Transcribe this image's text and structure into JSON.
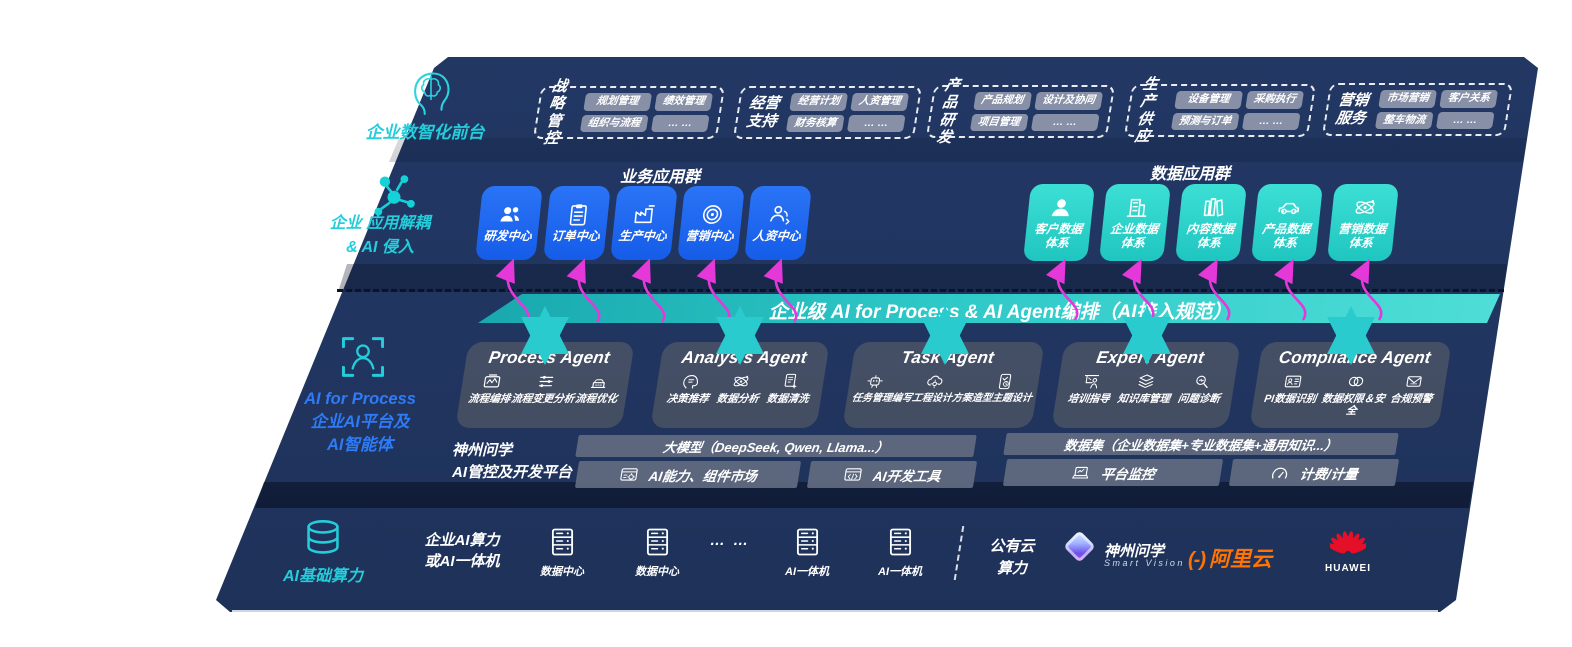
{
  "colors": {
    "accent_teal": "#25ccda",
    "accent_blue": "#2e7bf6",
    "tile_blue": "#1b63f0",
    "tile_teal": "#2bd6cc",
    "bar_teal": "#2fc9c8",
    "arrow_magenta": "#e438d8",
    "alibaba_orange": "#ff7300",
    "huawei_red": "#e60f28",
    "slab_navy": "#213762"
  },
  "front_office": {
    "label": "企业数智化前台",
    "groups": [
      {
        "name": "战略管控",
        "items": [
          "规划管理",
          "绩效管理",
          "组织与流程",
          "… …"
        ]
      },
      {
        "name": "经营支持",
        "items": [
          "经营计划",
          "人资管理",
          "财务核算",
          "… …"
        ]
      },
      {
        "name": "产品研发",
        "items": [
          "产品规划",
          "设计及协同",
          "项目管理",
          "… …"
        ]
      },
      {
        "name": "生产供应",
        "items": [
          "设备管理",
          "采购执行",
          "预测与订单",
          "… …"
        ]
      },
      {
        "name": "营销服务",
        "items": [
          "市场营销",
          "客户关系",
          "整车物流",
          "… …"
        ]
      }
    ]
  },
  "apps": {
    "label_line1": "企业 应用解耦",
    "label_line2": "& AI 侵入",
    "business_title": "业务应用群",
    "business_tiles": [
      "研发中心",
      "订单中心",
      "生产中心",
      "营销中心",
      "人资中心"
    ],
    "data_title": "数据应用群",
    "data_tiles": [
      "客户数据体系",
      "企业数据体系",
      "内容数据体系",
      "产品数据体系",
      "营销数据体系"
    ]
  },
  "ai_bar": {
    "title": "企业级 AI for Process & AI Agent编排（AI接入规范）"
  },
  "platform_label": {
    "line1": "AI for Process",
    "line2": "企业AI平台及",
    "line3": "AI智能体"
  },
  "agents": [
    {
      "title": "Process Agent",
      "items": [
        "流程编排",
        "流程变更分析",
        "流程优化"
      ]
    },
    {
      "title": "Analysis Agent",
      "items": [
        "决策推荐",
        "数据分析",
        "数据清洗"
      ]
    },
    {
      "title": "Task Agent",
      "items": [
        "任务管理",
        "编写工程设计方案",
        "造型主题设计"
      ]
    },
    {
      "title": "Expert Agent",
      "items": [
        "培训指导",
        "知识库管理",
        "问题诊断"
      ]
    },
    {
      "title": "Compliance Agent",
      "items": [
        "PI数据识别",
        "数据权限＆安全",
        "合规预警"
      ]
    }
  ],
  "devplatform": {
    "label_line1": "神州问学",
    "label_line2": "AI管控及开发平台",
    "model_header": "大模型（DeepSeek, Qwen, Llama...）",
    "cell_ability": "AI能力、组件市场",
    "cell_devtool": "AI开发工具",
    "data_header": "数据集（企业数据集+专业数据集+通用知识...）",
    "cell_monitor": "平台监控",
    "cell_billing": "计费/计量"
  },
  "compute": {
    "label": "AI基础算力",
    "cluster_line1": "企业AI算力",
    "cluster_line2": "或AI一体机",
    "servers": [
      "数据中心",
      "数据中心",
      "AI一体机",
      "AI一体机"
    ],
    "dots": "… …",
    "cloud_line1": "公有云",
    "cloud_line2": "算力"
  },
  "partners": {
    "sv_name": "神州问学",
    "sv_sub": "Smart Vision",
    "alibaba_mark": "(-)",
    "alibaba": "阿里云",
    "huawei": "HUAWEI"
  }
}
